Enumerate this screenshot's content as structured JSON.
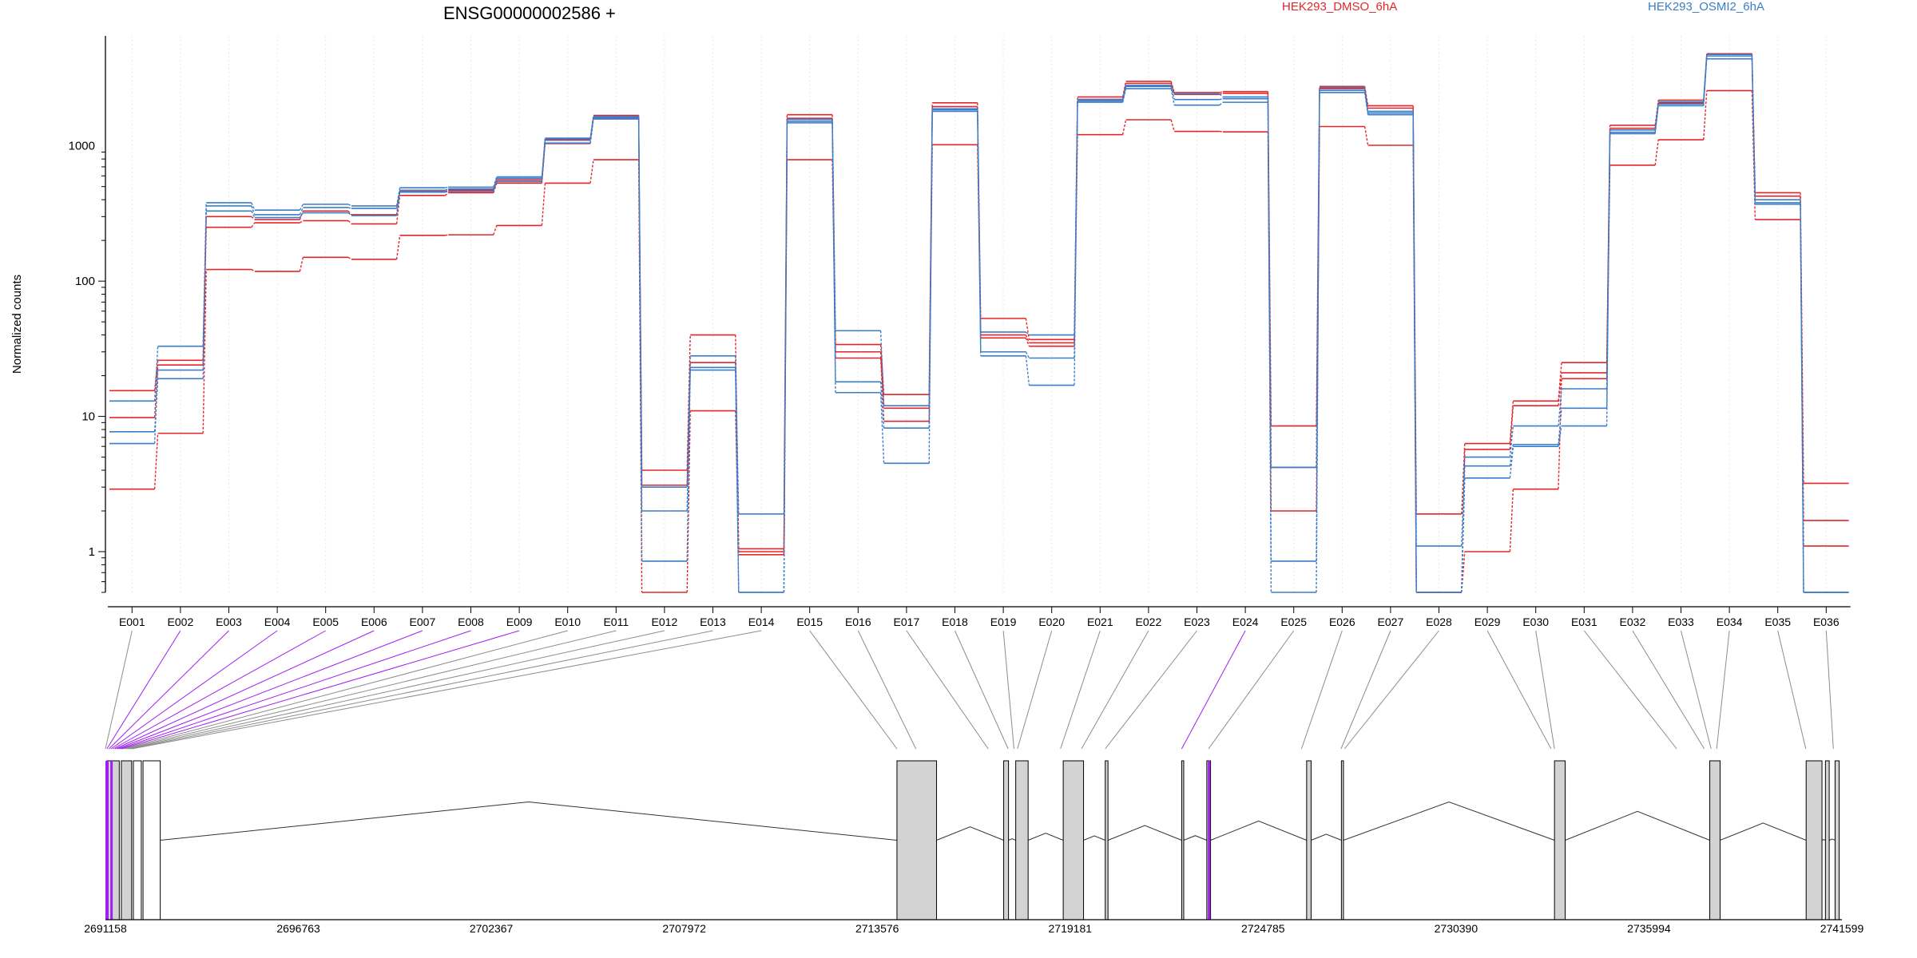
{
  "chart_data": {
    "type": "line",
    "title": "ENSG00000002586 +",
    "ylabel": "Normalized counts",
    "xlabel": "",
    "yscale": "log",
    "ylim": [
      0.5,
      6500
    ],
    "yticks": [
      {
        "value": 1,
        "label": "1"
      },
      {
        "value": 10,
        "label": "10"
      },
      {
        "value": 100,
        "label": "100"
      },
      {
        "value": 1000,
        "label": "1000"
      }
    ],
    "grid": "vertical dotted lines at each exon bin",
    "legend_position": "top",
    "legend": [
      {
        "label": "HEK293_DMSO_6hA",
        "color": "#e3262a"
      },
      {
        "label": "HEK293_OSMI2_6hA",
        "color": "#3a7dc9"
      }
    ],
    "categories": [
      "E001",
      "E002",
      "E003",
      "E004",
      "E005",
      "E006",
      "E007",
      "E008",
      "E009",
      "E010",
      "E011",
      "E012",
      "E013",
      "E014",
      "E015",
      "E016",
      "E017",
      "E018",
      "E019",
      "E020",
      "E021",
      "E022",
      "E023",
      "E024",
      "E025",
      "E026",
      "E027",
      "E028",
      "E029",
      "E030",
      "E031",
      "E032",
      "E033",
      "E034",
      "E035",
      "E036"
    ],
    "series": [
      {
        "group": "HEK293_DMSO_6hA",
        "color": "#e3262a",
        "values": [
          15.5,
          26,
          300,
          285,
          330,
          310,
          460,
          470,
          560,
          1120,
          1680,
          4,
          40,
          1.05,
          1700,
          34,
          14.5,
          2080,
          53,
          37,
          2300,
          3000,
          2480,
          2520,
          8.5,
          2750,
          1980,
          1.9,
          6.3,
          13,
          25,
          1420,
          2180,
          4800,
          450,
          3.2
        ]
      },
      {
        "group": "HEK293_DMSO_6hA",
        "color": "#e3262a",
        "values": [
          9.8,
          24,
          250,
          270,
          280,
          265,
          430,
          450,
          530,
          1040,
          1600,
          3.1,
          25,
          1,
          1600,
          30,
          11.5,
          1950,
          40,
          35,
          2200,
          2900,
          2400,
          2450,
          4.2,
          2650,
          1900,
          0.5,
          5.7,
          12,
          21,
          1350,
          2080,
          4750,
          425,
          1.7
        ]
      },
      {
        "group": "HEK293_DMSO_6hA",
        "color": "#e3262a",
        "values": [
          2.9,
          7.5,
          122,
          118,
          150,
          145,
          218,
          220,
          258,
          530,
          790,
          0.5,
          11,
          0.95,
          790,
          27,
          9.2,
          1020,
          38,
          33,
          1210,
          1560,
          1280,
          1270,
          2,
          1390,
          1010,
          0.5,
          1,
          2.9,
          19,
          720,
          1110,
          2560,
          285,
          1.1
        ]
      },
      {
        "group": "HEK293_OSMI2_6hA",
        "color": "#3a7dc9",
        "values": [
          13,
          33,
          380,
          335,
          370,
          360,
          490,
          495,
          590,
          1140,
          1650,
          3,
          28,
          1.9,
          1570,
          43,
          12,
          1880,
          42,
          40,
          2210,
          2800,
          2420,
          2300,
          4.2,
          2700,
          1800,
          1.1,
          5,
          8.5,
          16,
          1310,
          2120,
          4740,
          400,
          0.5
        ]
      },
      {
        "group": "HEK293_OSMI2_6hA",
        "color": "#3a7dc9",
        "values": [
          7.7,
          19,
          360,
          310,
          350,
          345,
          470,
          480,
          575,
          1100,
          1620,
          2,
          23,
          0.5,
          1520,
          18,
          8.2,
          1850,
          30,
          27,
          2150,
          2750,
          2200,
          2230,
          0.85,
          2570,
          1750,
          0.5,
          4.3,
          6.2,
          11.5,
          1260,
          2040,
          4620,
          380,
          0.5
        ]
      },
      {
        "group": "HEK293_OSMI2_6hA",
        "color": "#3a7dc9",
        "values": [
          6.3,
          22,
          330,
          295,
          320,
          305,
          455,
          460,
          545,
          1050,
          1580,
          0.85,
          22,
          0.5,
          1480,
          15,
          4.5,
          1800,
          28,
          17,
          2100,
          2650,
          2000,
          2100,
          0.5,
          2480,
          1700,
          0.5,
          3.5,
          6,
          8.5,
          1230,
          1980,
          4400,
          370,
          0.5
        ]
      }
    ],
    "gene_model": {
      "xaxis_ticks": [
        {
          "value": 2691158,
          "label": "2691158"
        },
        {
          "value": 2696763,
          "label": "2696763"
        },
        {
          "value": 2702367,
          "label": "2702367"
        },
        {
          "value": 2707972,
          "label": "2707972"
        },
        {
          "value": 2713576,
          "label": "2713576"
        },
        {
          "value": 2719181,
          "label": "2719181"
        },
        {
          "value": 2724785,
          "label": "2724785"
        },
        {
          "value": 2730390,
          "label": "2730390"
        },
        {
          "value": 2735994,
          "label": "2735994"
        },
        {
          "value": 2741599,
          "label": "2741599"
        }
      ],
      "xlim": [
        2691158,
        2741599
      ],
      "exon_color": "#d3d3d3",
      "highlight_color": "#a020f0",
      "exons": [
        {
          "start": 2691200,
          "end": 2691560,
          "fill": "#d3d3d3"
        },
        {
          "start": 2691620,
          "end": 2691920,
          "fill": "#d3d3d3"
        },
        {
          "start": 2691970,
          "end": 2692200,
          "fill": "#ffffff"
        },
        {
          "start": 2692250,
          "end": 2692750,
          "fill": "#ffffff"
        },
        {
          "start": 2714150,
          "end": 2715300,
          "fill": "#d3d3d3"
        },
        {
          "start": 2717250,
          "end": 2717390,
          "fill": "#d3d3d3"
        },
        {
          "start": 2717600,
          "end": 2717960,
          "fill": "#d3d3d3"
        },
        {
          "start": 2718980,
          "end": 2719570,
          "fill": "#d3d3d3"
        },
        {
          "start": 2720200,
          "end": 2720280,
          "fill": "#d3d3d3"
        },
        {
          "start": 2722420,
          "end": 2722480,
          "fill": "#d3d3d3"
        },
        {
          "start": 2723150,
          "end": 2723260,
          "fill": "#d3d3d3"
        },
        {
          "start": 2726050,
          "end": 2726180,
          "fill": "#d3d3d3"
        },
        {
          "start": 2727060,
          "end": 2727120,
          "fill": "#d3d3d3"
        },
        {
          "start": 2733250,
          "end": 2733560,
          "fill": "#d3d3d3"
        },
        {
          "start": 2737760,
          "end": 2738060,
          "fill": "#d3d3d3"
        },
        {
          "start": 2740560,
          "end": 2741020,
          "fill": "#d3d3d3"
        },
        {
          "start": 2741120,
          "end": 2741230,
          "fill": "#d3d3d3"
        },
        {
          "start": 2741400,
          "end": 2741520,
          "fill": "#d3d3d3"
        }
      ],
      "highlighted_bins": [
        "E002",
        "E003",
        "E004",
        "E005",
        "E006",
        "E007",
        "E008",
        "E009",
        "E024"
      ],
      "bin_genomic_positions": [
        2691158,
        2691200,
        2691260,
        2691320,
        2691380,
        2691440,
        2691500,
        2691560,
        2691620,
        2691680,
        2691740,
        2691800,
        2691860,
        2691920,
        2714150,
        2714700,
        2716800,
        2717380,
        2717550,
        2717650,
        2718900,
        2719510,
        2720200,
        2722420,
        2723200,
        2725900,
        2727050,
        2727150,
        2733150,
        2733250,
        2736800,
        2737600,
        2737800,
        2737960,
        2740550,
        2741350
      ]
    }
  }
}
